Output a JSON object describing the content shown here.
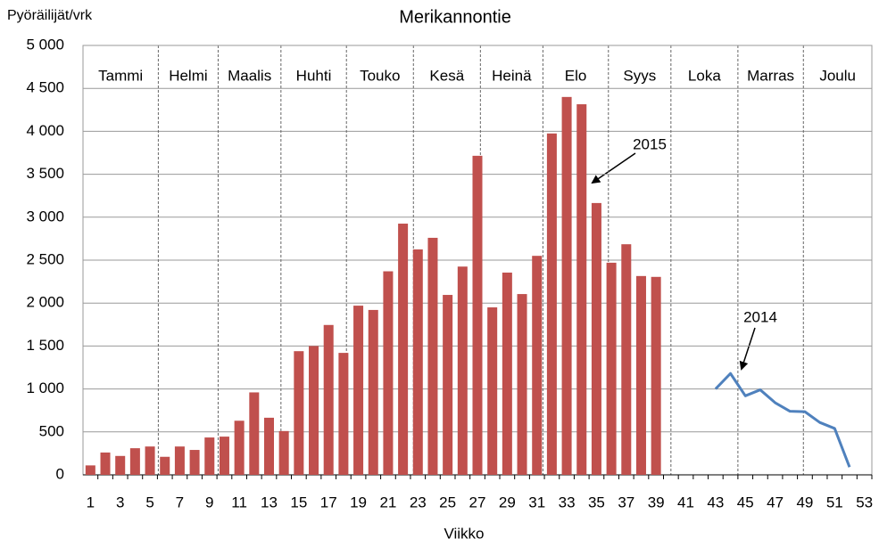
{
  "chart_data": {
    "type": "bar",
    "title": "Merikannontie",
    "y_label": "Pyöräilijät/vrk",
    "x_label": "Viikko",
    "x": [
      1,
      2,
      3,
      4,
      5,
      6,
      7,
      8,
      9,
      10,
      11,
      12,
      13,
      14,
      15,
      16,
      17,
      18,
      19,
      20,
      21,
      22,
      23,
      24,
      25,
      26,
      27,
      28,
      29,
      30,
      31,
      32,
      33,
      34,
      35,
      36,
      37,
      38,
      39,
      40,
      41,
      42,
      43,
      44,
      45,
      46,
      47,
      48,
      49,
      50,
      51,
      52,
      53
    ],
    "xlim": [
      0.5,
      53.5
    ],
    "xticks": [
      1,
      3,
      5,
      7,
      9,
      11,
      13,
      15,
      17,
      19,
      21,
      23,
      25,
      27,
      29,
      31,
      33,
      35,
      37,
      39,
      41,
      43,
      45,
      47,
      49,
      51,
      53
    ],
    "ylim": [
      0,
      5000
    ],
    "yticks": [
      0,
      500,
      {
        "value": 1000,
        "label": "1 000"
      },
      {
        "value": 1500,
        "label": "1 500"
      },
      {
        "value": 2000,
        "label": "2 000"
      },
      {
        "value": 2500,
        "label": "2 500"
      },
      {
        "value": 3000,
        "label": "3 000"
      },
      {
        "value": 3500,
        "label": "3 500"
      },
      {
        "value": 4000,
        "label": "4 000"
      },
      {
        "value": 4500,
        "label": "4 500"
      },
      {
        "value": 5000,
        "label": "5 000"
      }
    ],
    "grid": true,
    "months": [
      "Tammi",
      "Helmi",
      "Maalis",
      "Huhti",
      "Touko",
      "Kesä",
      "Heinä",
      "Elo",
      "Syys",
      "Loka",
      "Marras",
      "Joulu"
    ],
    "month_boundaries": [
      5.56,
      9.58,
      13.8,
      18.2,
      22.7,
      27.2,
      31.4,
      35.8,
      40,
      44.5,
      48.9
    ],
    "series": [
      {
        "name": "2015",
        "type": "bar",
        "color": "#c0504d",
        "values": [
          110,
          260,
          220,
          310,
          330,
          210,
          330,
          290,
          435,
          445,
          630,
          960,
          665,
          510,
          1440,
          1500,
          1745,
          1420,
          1970,
          1920,
          2370,
          2925,
          2625,
          2760,
          2095,
          2425,
          3715,
          1950,
          2355,
          2105,
          2550,
          3975,
          4400,
          4315,
          3165,
          2470,
          2685,
          2315,
          2305,
          null,
          null,
          null,
          null,
          null,
          null,
          null,
          null,
          null,
          null,
          null,
          null,
          null,
          null
        ]
      },
      {
        "name": "2014",
        "type": "line",
        "color": "#4f81bd",
        "values": [
          null,
          null,
          null,
          null,
          null,
          null,
          null,
          null,
          null,
          null,
          null,
          null,
          null,
          null,
          null,
          null,
          null,
          null,
          null,
          null,
          null,
          null,
          null,
          null,
          null,
          null,
          null,
          null,
          null,
          null,
          null,
          null,
          null,
          null,
          null,
          null,
          null,
          null,
          null,
          null,
          null,
          null,
          1000,
          1180,
          920,
          990,
          840,
          740,
          735,
          610,
          540,
          90,
          null
        ]
      }
    ]
  }
}
